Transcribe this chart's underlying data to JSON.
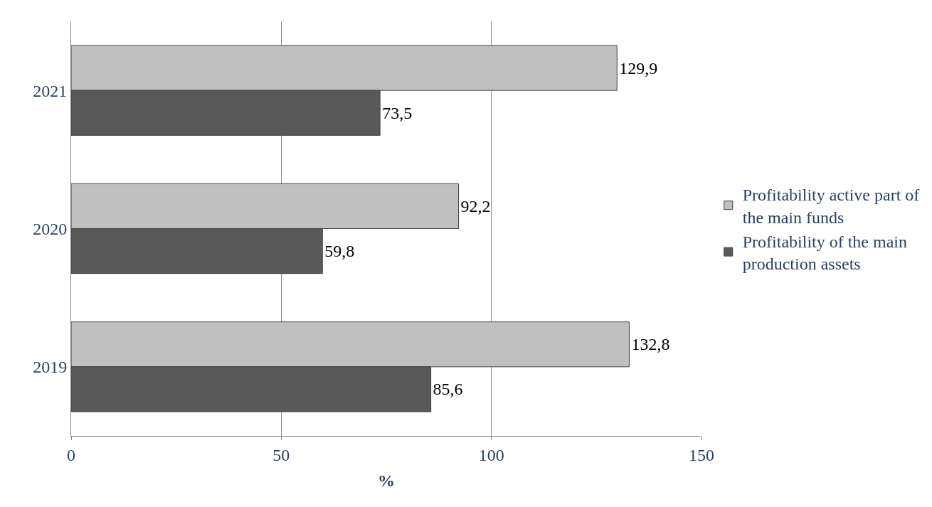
{
  "chart_data": {
    "type": "bar",
    "orientation": "horizontal",
    "xlabel": "%",
    "categories": [
      "2021",
      "2020",
      "2019"
    ],
    "series": [
      {
        "name": "Profitability active part of the main funds",
        "color": "#c0c0c0",
        "values": [
          129.9,
          92.2,
          132.8
        ],
        "value_labels": [
          "129,9",
          "92,2",
          "132,8"
        ]
      },
      {
        "name": "Profitability of the main production assets",
        "color": "#595959",
        "values": [
          73.5,
          59.8,
          85.6
        ],
        "value_labels": [
          "73,5",
          "59,8",
          "85,6"
        ]
      }
    ],
    "xlim": [
      0,
      150
    ],
    "xticks": [
      0,
      50,
      100,
      150
    ],
    "grid": "x",
    "legend": "right"
  }
}
